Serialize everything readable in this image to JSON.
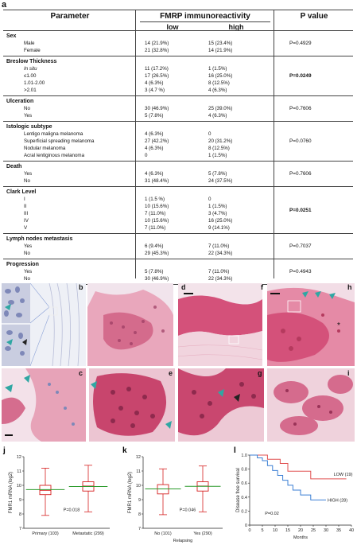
{
  "figure": {
    "panel_a": "a",
    "table": {
      "header": {
        "parameter": "Parameter",
        "fmrp": "FMRP immunoreactivity",
        "low": "low",
        "high": "high",
        "pvalue": "P value"
      },
      "sections": [
        {
          "title": "Sex",
          "p": "P=0.4929",
          "p_bold": false,
          "rows": [
            {
              "label": "Male",
              "low": "14 (21.9%)",
              "high": "15 (23.4%)"
            },
            {
              "label": "Female",
              "low": "21 (32.8%)",
              "high": "14 (21.9%)"
            }
          ]
        },
        {
          "title": "Breslow Thickness",
          "p": "P=0.0249",
          "p_bold": true,
          "rows": [
            {
              "label": "In situ",
              "low": "11 (17.2%)",
              "high": "1 (1.5%)",
              "italic": true
            },
            {
              "label": "≤1.00",
              "low": "17 (26.5%)",
              "high": "16 (25.0%)"
            },
            {
              "label": "1.01-2.00",
              "low": "4 (6.3%)",
              "high": "8 (12.5%)"
            },
            {
              "label": ">2.01",
              "low": "3 (4.7 %)",
              "high": "4 (6.3%)"
            }
          ]
        },
        {
          "title": "Ulceration",
          "p": "P=0.7606",
          "p_bold": false,
          "rows": [
            {
              "label": "No",
              "low": "30 (46.9%)",
              "high": "25 (39.0%)"
            },
            {
              "label": "Yes",
              "low": "5 (7.8%)",
              "high": "4 (6.3%)"
            }
          ]
        },
        {
          "title": "Istologic subtype",
          "p": "P=0.0760",
          "p_bold": false,
          "rows": [
            {
              "label": "Lentigo maligna melanoma",
              "low": "4 (6.3%)",
              "high": "0"
            },
            {
              "label": "Superficial spreading melanoma",
              "low": "27 (42.2%)",
              "high": "20 (31.2%)"
            },
            {
              "label": "Nodular melanoma",
              "low": "4 (6.3%)",
              "high": "8 (12.5%)"
            },
            {
              "label": "Acral lentiginous melanoma",
              "low": "0",
              "high": "1 (1.5%)"
            }
          ]
        },
        {
          "title": "Death",
          "p": "P=0.7606",
          "p_bold": false,
          "rows": [
            {
              "label": "Yes",
              "low": "4 (6.3%)",
              "high": "5 (7.8%)"
            },
            {
              "label": "No",
              "low": "31 (48.4%)",
              "high": "24 (37.5%)"
            }
          ]
        },
        {
          "title": "Clark Level",
          "p": "P=0.0251",
          "p_bold": true,
          "rows": [
            {
              "label": "I",
              "low": "1 (1.5 %)",
              "high": "0"
            },
            {
              "label": "II",
              "low": "10 (15.6%)",
              "high": "1 (1.5%)"
            },
            {
              "label": "III",
              "low": "7 (11.0%)",
              "high": "3 (4.7%)"
            },
            {
              "label": "IV",
              "low": "10 (15.6%)",
              "high": "16 (25.0%)"
            },
            {
              "label": "V",
              "low": "7 (11.0%)",
              "high": "9 (14.1%)"
            }
          ]
        },
        {
          "title": "Lymph nodes metastasis",
          "p": "P=0.7037",
          "p_bold": false,
          "rows": [
            {
              "label": "Yes",
              "low": "6 (9.4%)",
              "high": "7 (11.0%)"
            },
            {
              "label": "No",
              "low": "29 (45.3%)",
              "high": "22 (34.3%)"
            }
          ]
        },
        {
          "title": "Progression",
          "p": "P=0.4943",
          "p_bold": false,
          "rows": [
            {
              "label": "Yes",
              "low": "5 (7.8%)",
              "high": "7 (11.0%)"
            },
            {
              "label": "No",
              "low": "30 (46.9%)",
              "high": "22 (34.3%)"
            }
          ]
        }
      ]
    },
    "image_panels": {
      "b": "b",
      "c": "c",
      "d": "d",
      "e": "e",
      "f": "f",
      "g": "g",
      "h": "h",
      "i": "i"
    },
    "colors": {
      "stain_pink": "#d9557a",
      "stain_dark": "#b8304f",
      "nuclei_blue": "#6d7fb5",
      "arrow_teal": "#2fa7a3",
      "box_red": "#d62020",
      "box_green": "#2a9a2a",
      "km_blue": "#3b7fd4",
      "km_red": "#e05050"
    }
  },
  "chart_data": [
    {
      "panel": "j",
      "type": "box",
      "ylabel": "FMR1 mRNA (log2)",
      "ylim": [
        7,
        12
      ],
      "yticks": [
        "7",
        "8",
        "9",
        "10",
        "11",
        "12"
      ],
      "categories": [
        "Primary (103)",
        "Metastatic (299)"
      ],
      "boxes": [
        {
          "min": 7.9,
          "q1": 9.35,
          "median": 9.65,
          "q3": 10.0,
          "max": 11.2,
          "mean": 9.7
        },
        {
          "min": 8.15,
          "q1": 9.6,
          "median": 9.95,
          "q3": 10.25,
          "max": 11.4,
          "mean": 9.92
        }
      ],
      "annotation": "P=0.018"
    },
    {
      "panel": "k",
      "type": "box",
      "ylabel": "FMR1 mRNA (log2)",
      "xlabel": "Relapsing",
      "ylim": [
        7,
        12
      ],
      "yticks": [
        "7",
        "8",
        "9",
        "10",
        "11",
        "12"
      ],
      "categories": [
        "No (101)",
        "Yes (290)"
      ],
      "boxes": [
        {
          "min": 7.95,
          "q1": 9.4,
          "median": 9.75,
          "q3": 10.05,
          "max": 11.15,
          "mean": 9.75
        },
        {
          "min": 8.15,
          "q1": 9.6,
          "median": 9.95,
          "q3": 10.25,
          "max": 11.35,
          "mean": 9.93
        }
      ],
      "annotation": "P=0.046"
    },
    {
      "panel": "l",
      "type": "line",
      "ylabel": "Disease free survival",
      "xlabel": "Months",
      "xlim": [
        0,
        40
      ],
      "ylim": [
        0,
        1.0
      ],
      "xticks": [
        "0",
        "5",
        "10",
        "15",
        "20",
        "25",
        "30",
        "35",
        "40"
      ],
      "yticks": [
        "0",
        "0.2",
        "0.4",
        "0.6",
        "0.8",
        "1.0"
      ],
      "series": [
        {
          "name": "LOW (19)",
          "x": [
            0,
            7,
            7,
            12,
            12,
            15,
            15,
            24,
            24,
            38
          ],
          "y": [
            1.0,
            1.0,
            0.94,
            0.94,
            0.88,
            0.88,
            0.77,
            0.77,
            0.66,
            0.66
          ]
        },
        {
          "name": "HIGH (28)",
          "x": [
            0,
            3,
            3,
            5,
            5,
            7,
            7,
            9,
            9,
            11,
            11,
            13,
            13,
            15,
            15,
            17,
            17,
            20,
            20,
            24,
            24,
            30
          ],
          "y": [
            1.0,
            1.0,
            0.96,
            0.96,
            0.92,
            0.92,
            0.85,
            0.85,
            0.78,
            0.78,
            0.71,
            0.71,
            0.64,
            0.64,
            0.57,
            0.57,
            0.5,
            0.5,
            0.43,
            0.43,
            0.36,
            0.36
          ]
        }
      ],
      "annotation": "P=0.02"
    }
  ]
}
